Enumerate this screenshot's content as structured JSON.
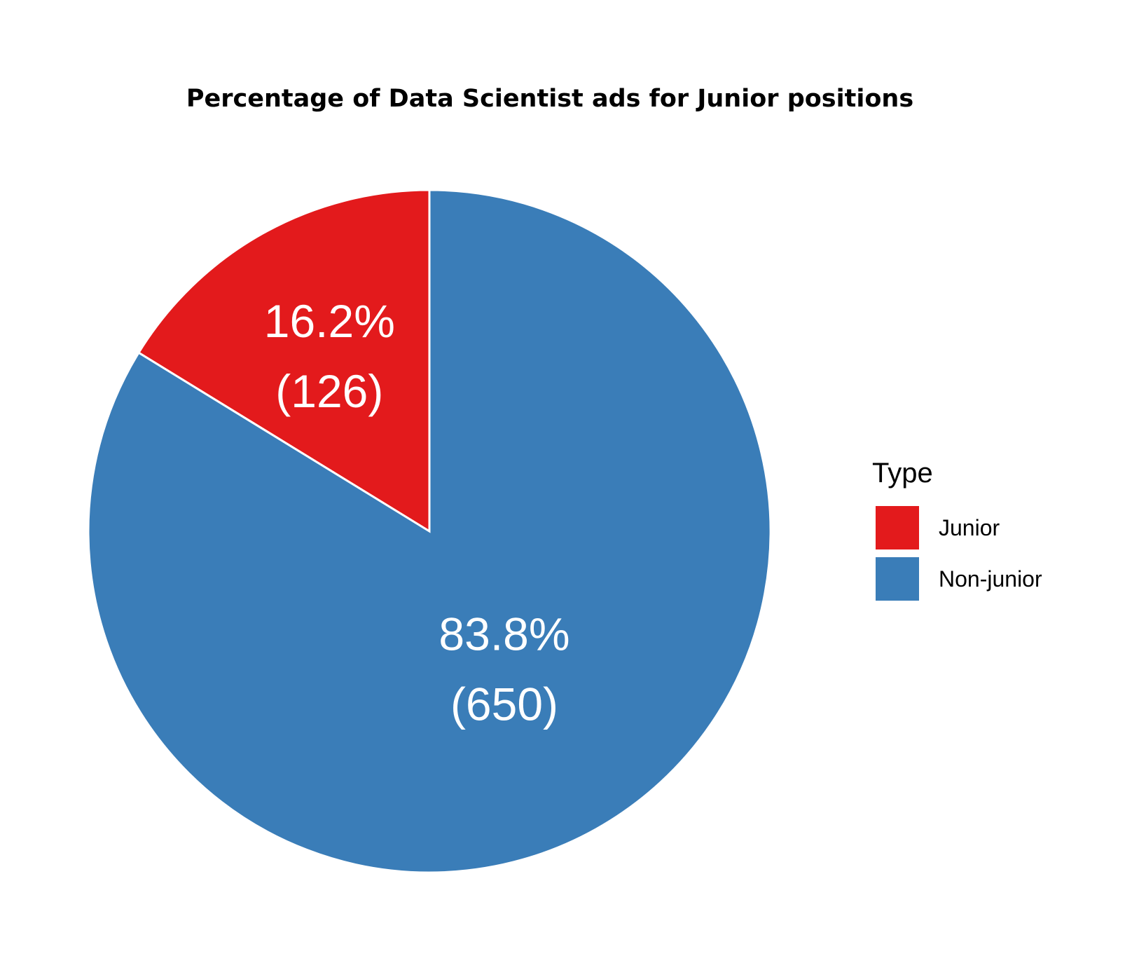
{
  "chart_data": {
    "type": "pie",
    "title": "Percentage of Data Scientist ads for Junior positions",
    "slices": [
      {
        "name": "Junior",
        "value": 126,
        "percent_label": "16.2%",
        "count_label": "(126)",
        "color": "#E31A1C"
      },
      {
        "name": "Non-junior",
        "value": 650,
        "percent_label": "83.8%",
        "count_label": "(650)",
        "color": "#3A7DB8"
      }
    ],
    "legend": {
      "title": "Type",
      "position": "right",
      "items": [
        "Junior",
        "Non-junior"
      ]
    }
  }
}
